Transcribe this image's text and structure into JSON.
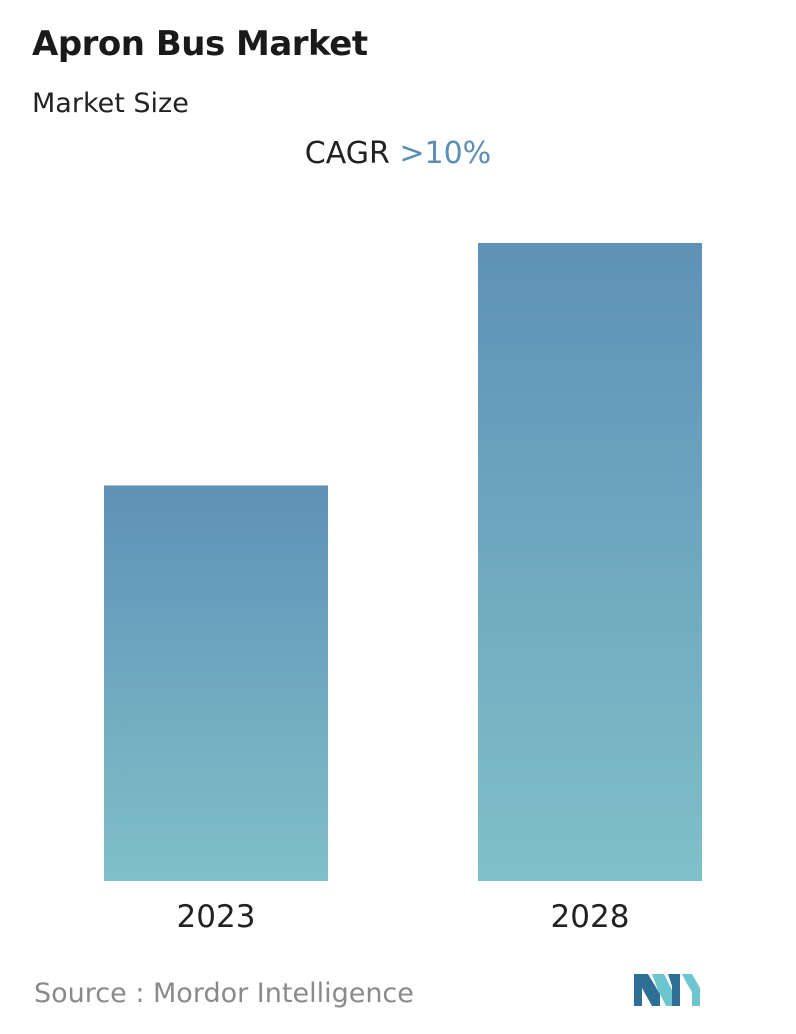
{
  "header": {
    "title": "Apron Bus Market",
    "subtitle": "Market Size"
  },
  "cagr": {
    "label": "CAGR",
    "value": ">10%"
  },
  "footer": {
    "source_label": "Source :",
    "source_name": "Mordor Intelligence"
  },
  "colors": {
    "bar_top": "#5f91b7",
    "bar_bottom": "#7fc0c8",
    "cagr_accent": "#5b8db5",
    "logo_dark": "#2f6f96",
    "logo_light": "#6cc5cf"
  },
  "chart_data": {
    "type": "bar",
    "categories": [
      "2023",
      "2028"
    ],
    "values": [
      62,
      100
    ],
    "title": "Apron Bus Market",
    "subtitle": "Market Size",
    "xlabel": "",
    "ylabel": "",
    "ylim": [
      0,
      100
    ],
    "grid": false,
    "legend": "none"
  }
}
